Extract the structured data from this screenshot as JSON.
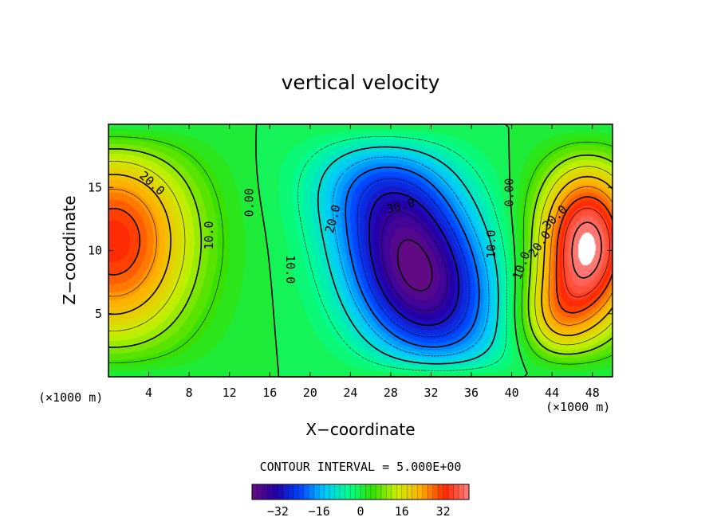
{
  "chart_data": {
    "type": "heatmap",
    "title": "vertical velocity",
    "xlabel": "X−coordinate",
    "ylabel": "Z−coordinate",
    "x_unit": "(×1000 m)",
    "y_unit": "(×1000 m)",
    "xlim": [
      0,
      50
    ],
    "ylim": [
      0,
      20
    ],
    "xticks": [
      4,
      8,
      12,
      16,
      20,
      24,
      28,
      32,
      36,
      40,
      44,
      48
    ],
    "yticks": [
      5,
      10,
      15
    ],
    "contour_interval_text": "CONTOUR INTERVAL = 5.000E+00",
    "contour_labels": [
      {
        "text": "20.0",
        "x": 4.3,
        "z": 15.3,
        "angle": 42
      },
      {
        "text": "10.0",
        "x": 10.0,
        "z": 11.2,
        "angle": -90
      },
      {
        "text": "0.00",
        "x": 14.0,
        "z": 13.8,
        "angle": -90
      },
      {
        "text": "10.0",
        "x": 18.0,
        "z": 8.5,
        "angle": 90
      },
      {
        "text": "20.0",
        "x": 22.3,
        "z": 12.5,
        "angle": -75
      },
      {
        "text": "30.0",
        "x": 29.0,
        "z": 13.5,
        "angle": -15
      },
      {
        "text": "10.0",
        "x": 38.0,
        "z": 10.5,
        "angle": -90
      },
      {
        "text": "0.00",
        "x": 39.8,
        "z": 14.6,
        "angle": -90
      },
      {
        "text": "10.0",
        "x": 41.0,
        "z": 8.8,
        "angle": -70
      },
      {
        "text": "20.0",
        "x": 42.8,
        "z": 10.5,
        "angle": -55
      },
      {
        "text": "30.0",
        "x": 44.3,
        "z": 12.6,
        "angle": -45
      }
    ],
    "extrema": {
      "max_updraft_center": {
        "x": 47.5,
        "z": 10.5,
        "approx_value": 40
      },
      "left_updraft_center": {
        "x": 0.5,
        "z": 11,
        "approx_value": 33
      },
      "min_downdraft_center": {
        "x": 30.5,
        "z": 8.5,
        "approx_value": -40
      }
    },
    "colorbar": {
      "min": -42,
      "max": 42,
      "tick_values": [
        -32,
        -16,
        0,
        16,
        32
      ],
      "tick_labels": [
        "−32",
        "−16",
        "0",
        "16",
        "32"
      ]
    }
  },
  "colors": {
    "stops": [
      "#6a0a80",
      "#2200a8",
      "#0044ff",
      "#00c8ff",
      "#00ff90",
      "#33e000",
      "#ccf000",
      "#ffb000",
      "#ff2800",
      "#ff8080"
    ]
  }
}
